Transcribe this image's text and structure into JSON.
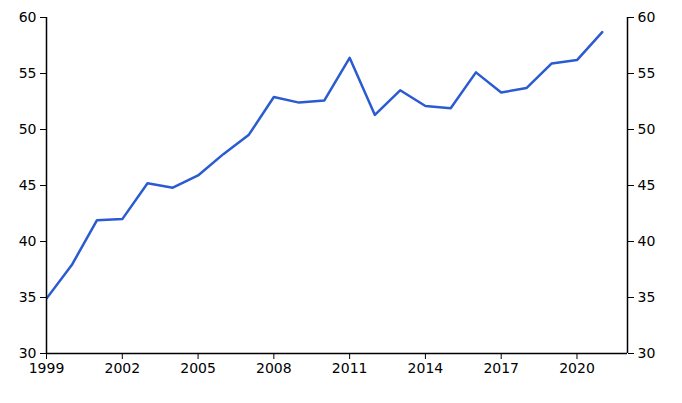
{
  "chart_data": {
    "type": "line",
    "x": [
      1999,
      2000,
      2001,
      2002,
      2003,
      2004,
      2005,
      2006,
      2007,
      2008,
      2009,
      2010,
      2011,
      2012,
      2013,
      2014,
      2015,
      2016,
      2017,
      2018,
      2019,
      2020,
      2021
    ],
    "values": [
      34.9,
      37.9,
      41.9,
      42.0,
      45.2,
      44.8,
      45.9,
      47.8,
      49.5,
      52.9,
      52.4,
      52.6,
      56.4,
      51.3,
      53.5,
      52.1,
      51.9,
      55.1,
      53.3,
      53.7,
      55.9,
      56.2,
      58.7
    ],
    "color": "#2a5bd0",
    "xlim": [
      1999,
      2022
    ],
    "xticks": [
      1999,
      2002,
      2005,
      2008,
      2011,
      2014,
      2017,
      2020
    ],
    "ylim": [
      30,
      60
    ],
    "yticks": [
      30,
      35,
      40,
      45,
      50,
      55,
      60
    ],
    "grid": false
  }
}
